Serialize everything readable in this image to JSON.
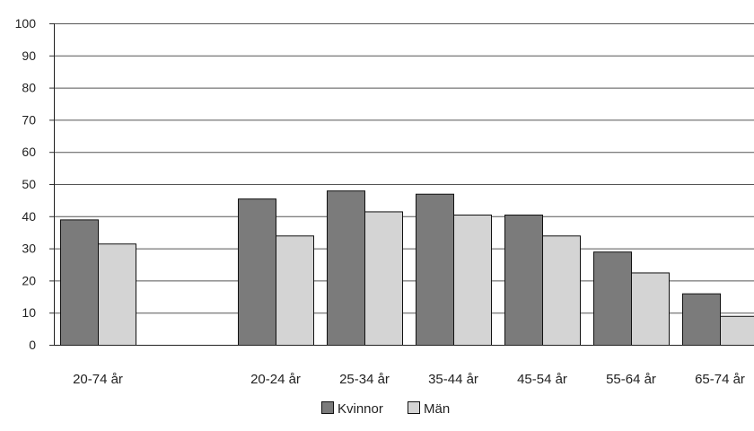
{
  "chart_data": {
    "type": "bar",
    "categories": [
      "20-74 år",
      "",
      "20-24 år",
      "25-34 år",
      "35-44 år",
      "45-54 år",
      "55-64 år",
      "65-74 år"
    ],
    "series": [
      {
        "name": "Kvinnor",
        "color": "#7b7b7b",
        "values": [
          39,
          null,
          45.5,
          48,
          47,
          40.5,
          29,
          16
        ]
      },
      {
        "name": "Män",
        "color": "#d4d4d4",
        "values": [
          31.5,
          null,
          34,
          41.5,
          40.5,
          34,
          22.5,
          9
        ]
      }
    ],
    "ylim": [
      0,
      100
    ],
    "yticks": [
      0,
      10,
      20,
      30,
      40,
      50,
      60,
      70,
      80,
      90,
      100
    ],
    "grid": true,
    "legend_position": "bottom-center"
  }
}
